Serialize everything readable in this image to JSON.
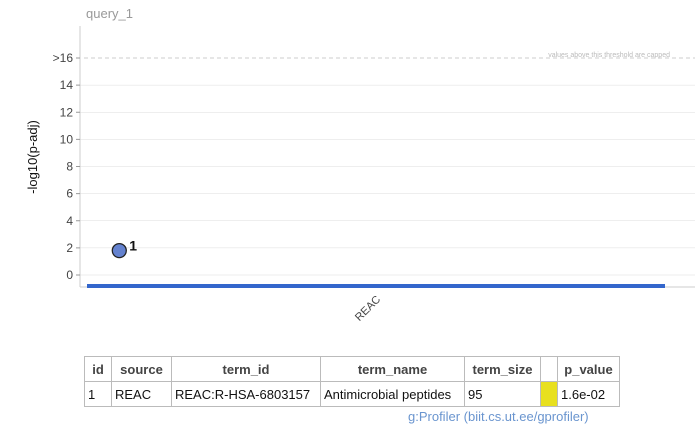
{
  "chart_data": {
    "type": "scatter",
    "title": "query_1",
    "ylabel": "-log10(p-adj)",
    "yticks": [
      "0",
      "2",
      "4",
      "6",
      "8",
      "10",
      "12",
      "14",
      ">16"
    ],
    "ylim": [
      -1,
      17.5
    ],
    "threshold": {
      "value": 16,
      "label": "values above this threshold are capped"
    },
    "categories": [
      "REAC"
    ],
    "points": [
      {
        "id": "1",
        "source": "REAC",
        "y": 1.8,
        "x_fraction": 0.055
      }
    ],
    "colors": {
      "point": "#6482cf",
      "source_bar": "#3366cc",
      "grid": "#dddddd",
      "title": "#999999"
    },
    "grid": true
  },
  "table": {
    "headers": [
      "id",
      "source",
      "term_id",
      "term_name",
      "term_size",
      "",
      "p_value"
    ],
    "rows": [
      {
        "id": "1",
        "source": "REAC",
        "term_id": "REAC:R-HSA-6803157",
        "term_name": "Antimicrobial peptides",
        "term_size": "95",
        "swatch_color": "#e8e01f",
        "p_value": "1.6e-02"
      }
    ]
  },
  "footer": {
    "credit": "g:Profiler (biit.cs.ut.ee/gprofiler)"
  }
}
